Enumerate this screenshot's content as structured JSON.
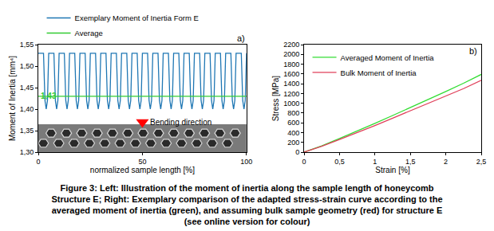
{
  "chart_data": [
    {
      "type": "line",
      "xlabel": "normalized sample length [%]",
      "ylabel": "Moment of Inertia [mm⁴]",
      "xlim": [
        0,
        100
      ],
      "xticks": [
        0,
        50,
        100
      ],
      "ylim": [
        1.3,
        1.55
      ],
      "yticks": [
        {
          "value": 1.3,
          "label": "1,30"
        },
        {
          "value": 1.35,
          "label": "1,35"
        },
        {
          "value": 1.4,
          "label": "1,40"
        },
        {
          "value": 1.45,
          "label": "1,45"
        },
        {
          "value": 1.5,
          "label": "1,50"
        },
        {
          "value": 1.55,
          "label": "1,55"
        }
      ],
      "grid": false,
      "legend": "top left",
      "series": [
        {
          "name": "Exemplary Moment of Inertia Form E",
          "color": "#1f77b4",
          "x": [
            0,
            2.5,
            3.2,
            3.8,
            4.4,
            5,
            7.5,
            8.2,
            8.8,
            9.4,
            10,
            12.5,
            13.2,
            13.8,
            14.4,
            15,
            17.5,
            18.2,
            18.8,
            19.4,
            20,
            22.5,
            23.2,
            23.8,
            24.4,
            25,
            27.5,
            28.2,
            28.8,
            29.4,
            30,
            32.5,
            33.2,
            33.8,
            34.4,
            35,
            37.5,
            38.2,
            38.8,
            39.4,
            40,
            42.5,
            43.2,
            43.8,
            44.4,
            45,
            47.5,
            48.2,
            48.8,
            49.4,
            50,
            52.5,
            53.2,
            53.8,
            54.4,
            55,
            57.5,
            58.2,
            58.8,
            59.4,
            60,
            62.5,
            63.2,
            63.8,
            64.4,
            65,
            67.5,
            68.2,
            68.8,
            69.4,
            70,
            72.5,
            73.2,
            73.8,
            74.4,
            75,
            77.5,
            78.2,
            78.8,
            79.4,
            80,
            82.5,
            83.2,
            83.8,
            84.4,
            85,
            87.5,
            88.2,
            88.8,
            89.4,
            90,
            92.5,
            93.2,
            93.8,
            94.4,
            95,
            97.5,
            98.2,
            98.8,
            99.4,
            100
          ],
          "values": [
            1.53,
            1.53,
            1.42,
            1.4,
            1.42,
            1.53,
            1.53,
            1.42,
            1.4,
            1.42,
            1.53,
            1.53,
            1.42,
            1.4,
            1.42,
            1.53,
            1.53,
            1.42,
            1.4,
            1.42,
            1.53,
            1.53,
            1.42,
            1.4,
            1.42,
            1.53,
            1.53,
            1.42,
            1.4,
            1.42,
            1.53,
            1.53,
            1.42,
            1.4,
            1.42,
            1.53,
            1.53,
            1.42,
            1.4,
            1.42,
            1.53,
            1.53,
            1.42,
            1.4,
            1.42,
            1.53,
            1.53,
            1.42,
            1.4,
            1.42,
            1.53,
            1.53,
            1.42,
            1.4,
            1.42,
            1.53,
            1.53,
            1.42,
            1.4,
            1.42,
            1.53,
            1.53,
            1.42,
            1.4,
            1.42,
            1.53,
            1.53,
            1.42,
            1.4,
            1.42,
            1.53,
            1.53,
            1.42,
            1.4,
            1.42,
            1.53,
            1.53,
            1.42,
            1.4,
            1.42,
            1.53,
            1.53,
            1.42,
            1.4,
            1.42,
            1.53,
            1.53,
            1.42,
            1.4,
            1.42,
            1.53,
            1.53,
            1.42,
            1.4,
            1.42,
            1.53,
            1.53,
            1.42,
            1.4,
            1.42,
            1.53
          ]
        },
        {
          "name": "Average",
          "color": "#33cc33",
          "x": [
            0,
            100
          ],
          "values": [
            1.43,
            1.43
          ]
        }
      ],
      "annotations": [
        {
          "text": "a)",
          "x": 100,
          "y": 1.55
        },
        {
          "text": "1,43",
          "x": 0,
          "y": 1.43,
          "color": "#33cc33"
        },
        {
          "text": "Bending direction",
          "x": 50,
          "y": 1.37,
          "color": "#ff0000"
        }
      ]
    },
    {
      "type": "line",
      "xlabel": "Strain [%]",
      "ylabel": "Stress [MPa]",
      "xlim": [
        0,
        2.5
      ],
      "xticks": [
        0,
        {
          "value": 0.5,
          "label": "0,5"
        },
        1,
        {
          "value": 1.5,
          "label": "1,5"
        },
        2,
        {
          "value": 2.5,
          "label": "2,5"
        }
      ],
      "ylim": [
        0,
        2200
      ],
      "yticks": [
        0,
        200,
        400,
        600,
        800,
        1000,
        1200,
        1400,
        1600,
        1800,
        2000,
        2200
      ],
      "grid": false,
      "legend": "top left",
      "series": [
        {
          "name": "Averaged Moment of Inertia",
          "color": "#33dd33",
          "x": [
            0,
            0.25,
            0.5,
            0.75,
            1,
            1.25,
            1.5,
            1.75,
            2,
            2.25,
            2.5
          ],
          "values": [
            0,
            130,
            280,
            430,
            590,
            750,
            910,
            1070,
            1240,
            1410,
            1590
          ]
        },
        {
          "name": "Bulk Moment of Inertia",
          "color": "#e0405a",
          "x": [
            0,
            0.25,
            0.5,
            0.75,
            1,
            1.25,
            1.5,
            1.75,
            2,
            2.25,
            2.5
          ],
          "values": [
            0,
            120,
            260,
            400,
            545,
            695,
            845,
            995,
            1150,
            1300,
            1470
          ]
        }
      ],
      "annotations": [
        {
          "text": "b)",
          "x": 2.5,
          "y": 2200
        }
      ]
    }
  ],
  "caption": [
    "Figure 3: Left: Illustration of the moment of inertia along the sample length of honeycomb",
    "Structure E; Right: Exemplary comparison of the adapted stress-strain curve according to the",
    "averaged moment of inertia (green), and assuming bulk sample geometry (red) for structure E",
    "(see online version for colour)"
  ]
}
